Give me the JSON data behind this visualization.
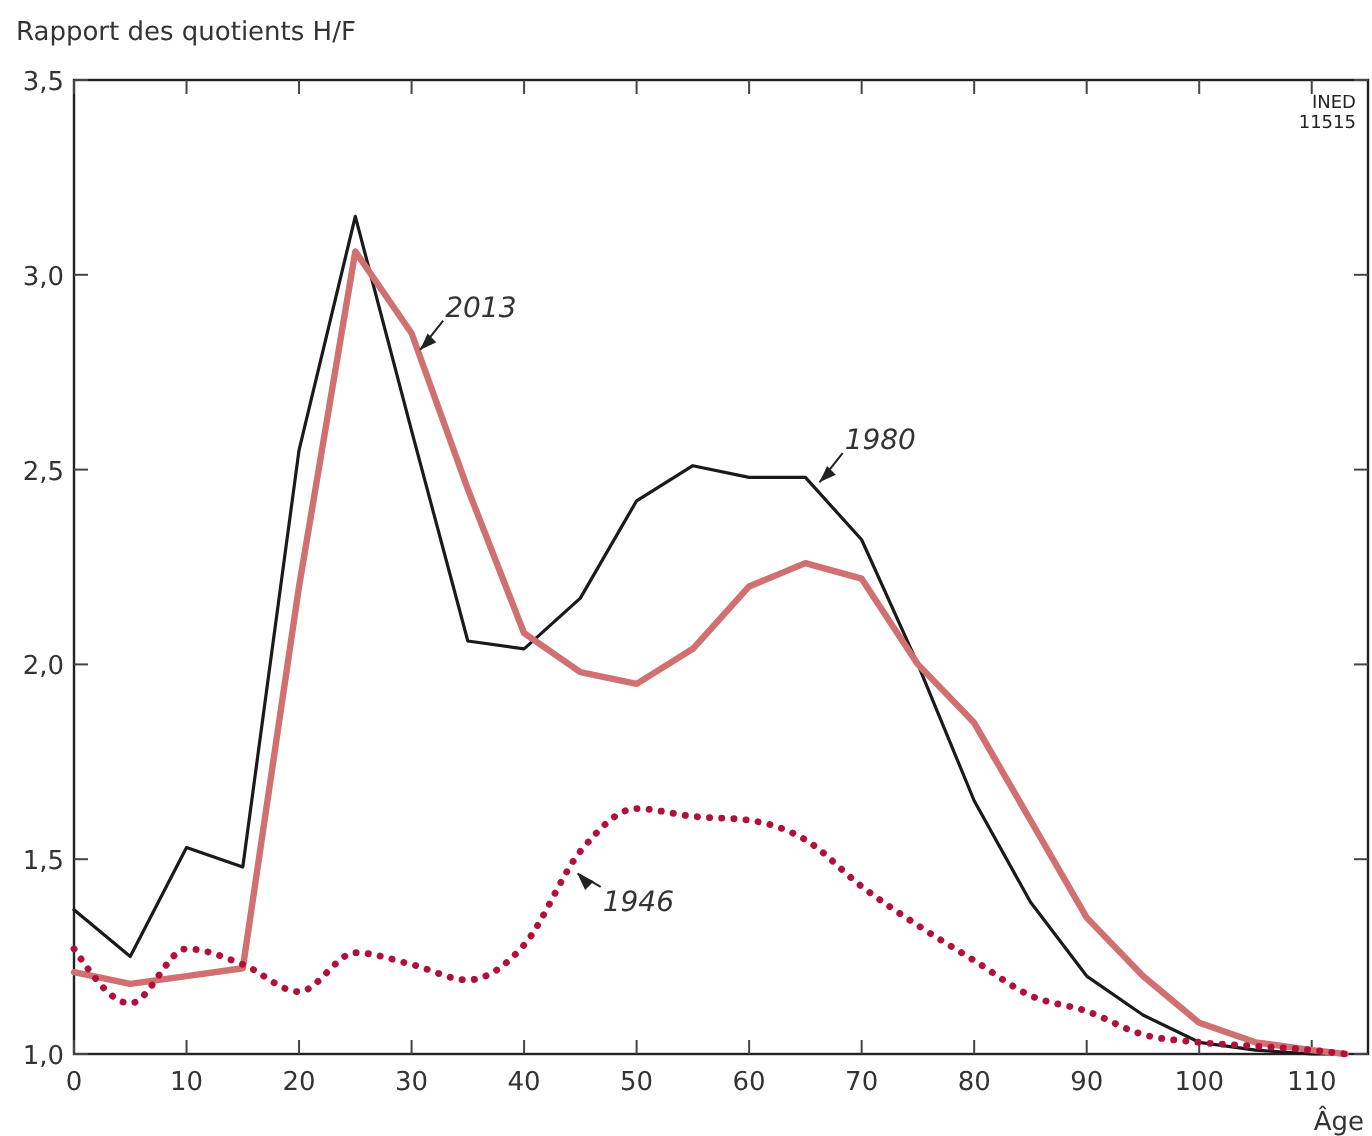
{
  "chart_data": {
    "type": "line",
    "ylabel": "Rapport des quotients H/F",
    "xlabel": "Âge",
    "xlim": [
      0,
      115
    ],
    "xticks": [
      0,
      10,
      20,
      30,
      40,
      50,
      60,
      70,
      80,
      90,
      100,
      110
    ],
    "ylim": [
      1,
      3.5
    ],
    "yticks": [
      {
        "value": 1,
        "label": "1,0"
      },
      {
        "value": 1.5,
        "label": "1,5"
      },
      {
        "value": 2,
        "label": "2,0"
      },
      {
        "value": 2.5,
        "label": "2,5"
      },
      {
        "value": 3,
        "label": "3,0"
      },
      {
        "value": 3.5,
        "label": "3,5"
      }
    ],
    "grid": false,
    "legend": false,
    "marker": "none",
    "series": [
      {
        "color": "#1a1a1a",
        "line_style": "solid",
        "x": [
          0,
          5,
          10,
          15,
          20,
          25,
          30,
          35,
          40,
          45,
          50,
          55,
          60,
          65,
          70,
          75,
          80,
          85,
          90,
          95,
          100,
          105,
          110,
          113
        ],
        "values": [
          1.37,
          1.25,
          1.53,
          1.48,
          2.55,
          3.15,
          2.6,
          2.06,
          2.04,
          2.17,
          2.42,
          2.51,
          2.48,
          2.48,
          2.32,
          2.0,
          1.65,
          1.39,
          1.2,
          1.1,
          1.03,
          1.01,
          1.0,
          1.0
        ]
      },
      {
        "color": "#d07070",
        "line_style": "solid",
        "x": [
          0,
          5,
          10,
          15,
          20,
          25,
          30,
          35,
          40,
          45,
          50,
          55,
          60,
          65,
          70,
          75,
          80,
          85,
          90,
          95,
          100,
          105,
          110,
          113
        ],
        "values": [
          1.21,
          1.18,
          1.2,
          1.22,
          2.2,
          3.06,
          2.85,
          2.45,
          2.08,
          1.98,
          1.95,
          2.04,
          2.2,
          2.26,
          2.22,
          2.0,
          1.85,
          1.6,
          1.35,
          1.2,
          1.08,
          1.03,
          1.01,
          1.0
        ]
      },
      {
        "color": "#b0103a",
        "line_style": "dotted",
        "x": [
          0,
          5,
          10,
          15,
          20,
          25,
          30,
          35,
          40,
          45,
          50,
          55,
          60,
          65,
          70,
          75,
          80,
          85,
          90,
          95,
          100,
          105,
          110,
          113
        ],
        "values": [
          1.27,
          1.13,
          1.27,
          1.23,
          1.16,
          1.26,
          1.23,
          1.19,
          1.28,
          1.52,
          1.63,
          1.61,
          1.6,
          1.55,
          1.43,
          1.33,
          1.24,
          1.15,
          1.11,
          1.05,
          1.03,
          1.02,
          1.01,
          1.0
        ]
      }
    ],
    "annotations": [
      {
        "text": "2013",
        "x": 30.5,
        "y": 2.8
      },
      {
        "text": "1980",
        "x": 66,
        "y": 2.46
      },
      {
        "text": "1946",
        "x": 44.5,
        "y": 1.47
      },
      "INED\n11515"
    ]
  }
}
